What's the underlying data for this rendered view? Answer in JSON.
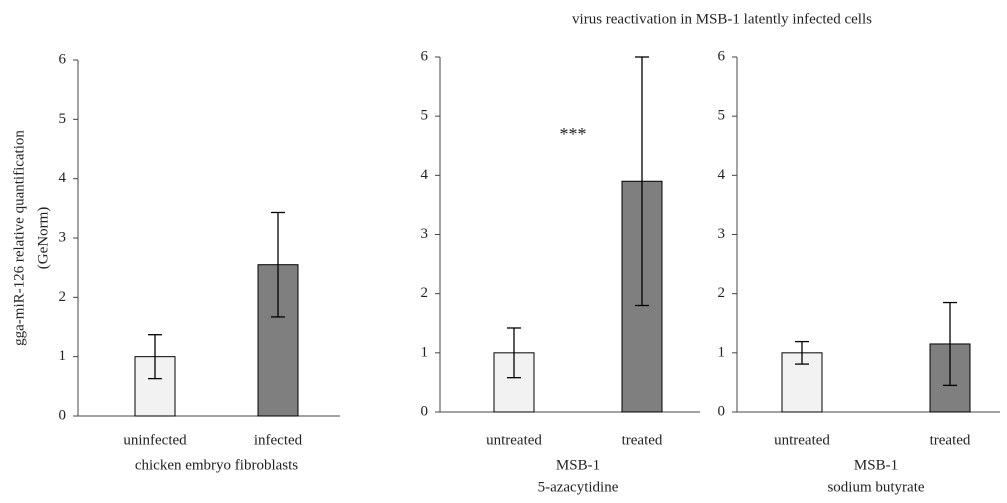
{
  "title": "virus reactivation in MSB-1 latently infected cells",
  "chart_data": [
    {
      "type": "bar",
      "categories": [
        "uninfected",
        "infected"
      ],
      "values": [
        1.0,
        2.55
      ],
      "errors": [
        0.37,
        0.88
      ],
      "colors": [
        "#f2f2f2",
        "#7f7f7f"
      ],
      "xlabel": [
        "chicken embryo fibroblasts"
      ],
      "ylabel": [
        "gga-miR-126 relative quantification",
        "(GeNorm)"
      ],
      "ylim": [
        0,
        6
      ],
      "yticks": [
        0,
        1,
        2,
        3,
        4,
        5,
        6
      ],
      "grid": false
    },
    {
      "type": "bar",
      "categories": [
        "untreated",
        "treated"
      ],
      "values": [
        1.0,
        3.9
      ],
      "errors": [
        0.42,
        2.1
      ],
      "colors": [
        "#f2f2f2",
        "#7f7f7f"
      ],
      "xlabel": [
        "MSB-1",
        "5-azacytidine"
      ],
      "annotations": [
        "***"
      ],
      "ylim": [
        0,
        6
      ],
      "yticks": [
        0,
        1,
        2,
        3,
        4,
        5,
        6
      ],
      "grid": false
    },
    {
      "type": "bar",
      "categories": [
        "untreated",
        "treated"
      ],
      "values": [
        1.0,
        1.15
      ],
      "errors": [
        0.19,
        0.7
      ],
      "colors": [
        "#f2f2f2",
        "#7f7f7f"
      ],
      "xlabel": [
        "MSB-1",
        "sodium butyrate"
      ],
      "ylim": [
        0,
        6
      ],
      "yticks": [
        0,
        1,
        2,
        3,
        4,
        5,
        6
      ],
      "grid": false
    }
  ]
}
